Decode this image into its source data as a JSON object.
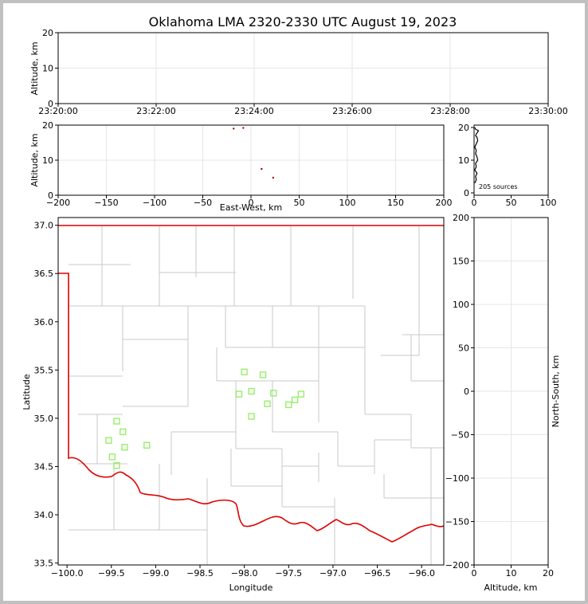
{
  "title": "Oklahoma LMA 2320-2330 UTC August 19, 2023",
  "chart_data": [
    {
      "id": "time-altitude",
      "type": "scatter",
      "ylabel": "Altitude, km",
      "xlabel": "",
      "ylim": [
        0,
        20
      ],
      "yticks": [
        0,
        10,
        20
      ],
      "xticks": [
        "23:20:00",
        "23:22:00",
        "23:24:00",
        "23:26:00",
        "23:28:00",
        "23:30:00"
      ],
      "grid": true,
      "points": []
    },
    {
      "id": "ew-altitude",
      "type": "scatter",
      "xlabel": "East-West, km",
      "ylabel": "Altitude, km",
      "xlim": [
        -200,
        200
      ],
      "ylim": [
        0,
        20
      ],
      "xticks": [
        -200,
        -150,
        -100,
        -50,
        0,
        50,
        100,
        150,
        200
      ],
      "yticks": [
        0,
        10,
        20
      ],
      "grid": true,
      "points": [
        {
          "x": -18,
          "y": 19.0
        },
        {
          "x": -8,
          "y": 19.2
        },
        {
          "x": 11,
          "y": 7.5
        },
        {
          "x": 23,
          "y": 5.0
        }
      ]
    },
    {
      "id": "altitude-histogram",
      "type": "line",
      "xlim": [
        0,
        100
      ],
      "ylim": [
        0,
        20
      ],
      "xticks": [
        0,
        50,
        100
      ],
      "yticks": [
        0,
        10,
        20
      ],
      "annotation": "205 sources",
      "x": [
        1,
        2,
        6,
        3,
        2,
        4,
        5,
        3,
        1,
        3,
        2,
        4,
        5,
        2,
        3,
        1,
        4,
        2,
        3,
        1
      ],
      "y": [
        20,
        19.5,
        19,
        18,
        17.5,
        17,
        16,
        15,
        14,
        13,
        12,
        11,
        10,
        9,
        8,
        7,
        6,
        5,
        4,
        3
      ]
    },
    {
      "id": "plan-view-map",
      "type": "scatter",
      "xlabel": "Longitude",
      "ylabel": "Latitude",
      "xlim": [
        -100.1,
        -95.75
      ],
      "ylim": [
        33.48,
        37.08
      ],
      "xticks": [
        -100.0,
        -99.5,
        -99.0,
        -98.5,
        -98.0,
        -97.5,
        -97.0,
        -96.5,
        -96.0
      ],
      "yticks": [
        33.5,
        34.0,
        34.5,
        35.0,
        35.5,
        36.0,
        36.5,
        37.0
      ],
      "xticklabels": [
        "−100.0",
        "−99.5",
        "−99.0",
        "−98.5",
        "−98.0",
        "−97.5",
        "−97.0",
        "−96.5",
        "−96.0"
      ],
      "stations": [
        {
          "lon": -99.44,
          "lat": 34.97
        },
        {
          "lon": -99.37,
          "lat": 34.86
        },
        {
          "lon": -99.53,
          "lat": 34.77
        },
        {
          "lon": -99.35,
          "lat": 34.7
        },
        {
          "lon": -99.49,
          "lat": 34.6
        },
        {
          "lon": -99.44,
          "lat": 34.51
        },
        {
          "lon": -99.1,
          "lat": 34.72
        },
        {
          "lon": -98.0,
          "lat": 35.48
        },
        {
          "lon": -97.79,
          "lat": 35.45
        },
        {
          "lon": -98.06,
          "lat": 35.25
        },
        {
          "lon": -97.92,
          "lat": 35.28
        },
        {
          "lon": -97.67,
          "lat": 35.26
        },
        {
          "lon": -97.36,
          "lat": 35.25
        },
        {
          "lon": -97.43,
          "lat": 35.19
        },
        {
          "lon": -97.74,
          "lat": 35.15
        },
        {
          "lon": -97.5,
          "lat": 35.14
        },
        {
          "lon": -97.92,
          "lat": 35.02
        }
      ],
      "station_color": "#90ee60",
      "border_color": "#e00000",
      "county_color": "#c8c8c8"
    },
    {
      "id": "altitude-ns",
      "type": "scatter",
      "xlabel": "Altitude, km",
      "ylabel": "North-South, km",
      "xlim": [
        0,
        20
      ],
      "ylim": [
        -200,
        200
      ],
      "xticks": [
        0,
        10,
        20
      ],
      "yticks": [
        -200,
        -150,
        -100,
        -50,
        0,
        50,
        100,
        150,
        200
      ],
      "grid": true,
      "points": []
    }
  ]
}
